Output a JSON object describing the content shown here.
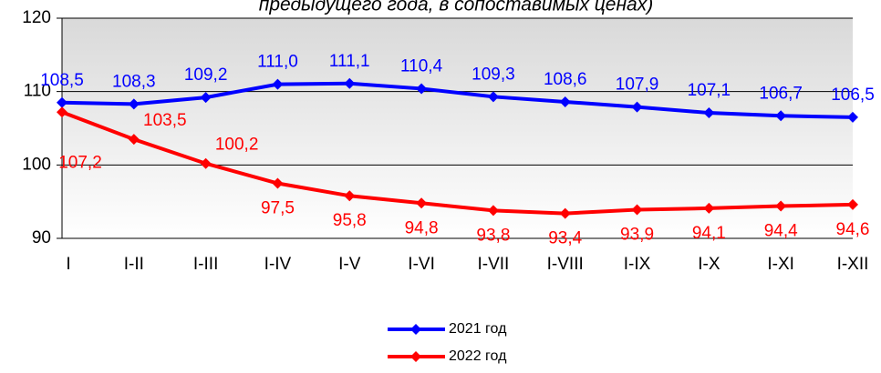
{
  "chart_data": {
    "type": "line",
    "title": "предыдущего года, в сопоставимых ценах)",
    "categories": [
      "I",
      "I-II",
      "I-III",
      "I-IV",
      "I-V",
      "I-VI",
      "I-VII",
      "I-VIII",
      "I-IX",
      "I-X",
      "I-XI",
      "I-XII"
    ],
    "series": [
      {
        "name": "2021 год",
        "color": "#0000ff",
        "values": [
          108.5,
          108.3,
          109.2,
          111.0,
          111.1,
          110.4,
          109.3,
          108.6,
          107.9,
          107.1,
          106.7,
          106.5
        ],
        "value_labels": [
          "108,5",
          "108,3",
          "109,2",
          "111,0",
          "111,1",
          "110,4",
          "109,3",
          "108,6",
          "107,9",
          "107,1",
          "106,7",
          "106,5"
        ]
      },
      {
        "name": "2022 год",
        "color": "#ff0000",
        "values": [
          107.2,
          103.5,
          100.2,
          97.5,
          95.8,
          94.8,
          93.8,
          93.4,
          93.9,
          94.1,
          94.4,
          94.6
        ],
        "value_labels": [
          "107,2",
          "103,5",
          "100,2",
          "97,5",
          "95,8",
          "94,8",
          "93,8",
          "93,4",
          "93,9",
          "94,1",
          "94,4",
          "94,6"
        ]
      }
    ],
    "ylim": [
      90,
      120
    ],
    "yticks": [
      90,
      100,
      110,
      120
    ],
    "grid": true,
    "legend": "bottom"
  }
}
